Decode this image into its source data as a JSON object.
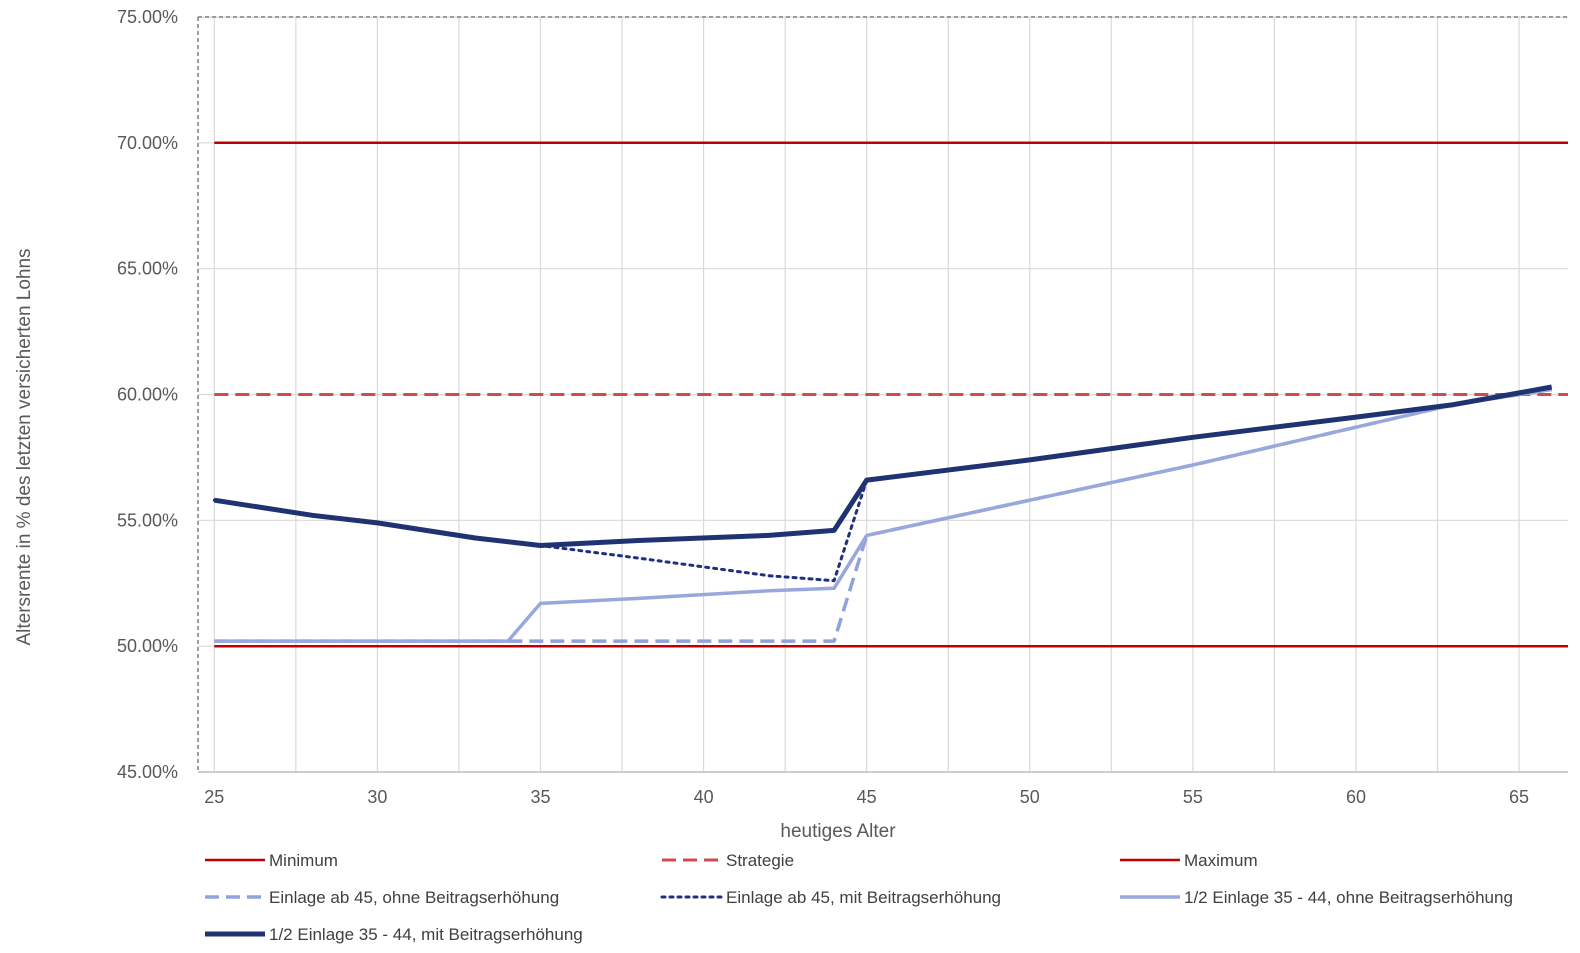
{
  "chart_data": {
    "type": "line",
    "xlabel": "heutiges Alter",
    "ylabel": "Altersrente in % des letzten versicherten Lohns",
    "xlim": [
      24.5,
      66.5
    ],
    "ylim": [
      45,
      75
    ],
    "x_ticks": [
      25,
      30,
      35,
      40,
      45,
      50,
      55,
      60,
      65
    ],
    "y_ticks": [
      "45.00%",
      "50.00%",
      "55.00%",
      "60.00%",
      "65.00%",
      "70.00%",
      "75.00%"
    ],
    "y_tick_values": [
      45,
      50,
      55,
      60,
      65,
      70,
      75
    ],
    "grid": true,
    "legend_position": "bottom",
    "series": [
      {
        "name": "Minimum",
        "color": "#C00000",
        "style": "solid",
        "width": 2.5,
        "x": [
          25,
          66.5
        ],
        "y": [
          50,
          50
        ]
      },
      {
        "name": "Strategie",
        "color": "#D04B4B",
        "style": "dashed",
        "width": 3,
        "x": [
          25,
          66.5
        ],
        "y": [
          60,
          60
        ]
      },
      {
        "name": "Maximum",
        "color": "#C00000",
        "style": "solid",
        "width": 2.5,
        "x": [
          25,
          66.5
        ],
        "y": [
          70,
          70
        ]
      },
      {
        "name": "Einlage ab 45, ohne Beitragserhöhung",
        "color": "#8FA2DA",
        "style": "dashed",
        "width": 3.5,
        "x": [
          25,
          35,
          44,
          45,
          50,
          55,
          60,
          63,
          66
        ],
        "y": [
          50.2,
          50.2,
          50.2,
          54.4,
          55.8,
          57.2,
          58.7,
          59.6,
          60.2
        ]
      },
      {
        "name": "Einlage ab 45, mit Beitragserhöhung",
        "color": "#203080",
        "style": "dotted",
        "width": 3,
        "x": [
          25,
          28,
          30,
          33,
          35,
          38,
          42,
          44,
          45,
          50,
          55,
          60,
          63,
          66
        ],
        "y": [
          55.8,
          55.2,
          54.9,
          54.3,
          54.0,
          53.5,
          52.8,
          52.6,
          56.6,
          57.4,
          58.3,
          59.1,
          59.6,
          60.3
        ]
      },
      {
        "name": "1/2 Einlage 35 - 44, ohne Beitragserhöhung",
        "color": "#98A8DC",
        "style": "solid",
        "width": 3.5,
        "x": [
          25,
          34,
          35,
          38,
          42,
          44,
          45,
          50,
          55,
          60,
          63,
          66
        ],
        "y": [
          50.2,
          50.2,
          51.7,
          51.9,
          52.2,
          52.3,
          54.4,
          55.8,
          57.2,
          58.7,
          59.6,
          60.2
        ]
      },
      {
        "name": "1/2 Einlage 35 - 44, mit Beitragserhöhung",
        "color": "#1F3372",
        "style": "solid",
        "width": 5,
        "x": [
          25,
          28,
          30,
          33,
          35,
          38,
          42,
          44,
          45,
          50,
          55,
          60,
          63,
          66
        ],
        "y": [
          55.8,
          55.2,
          54.9,
          54.3,
          54.0,
          54.2,
          54.4,
          54.6,
          56.6,
          57.4,
          58.3,
          59.1,
          59.6,
          60.3
        ]
      }
    ]
  }
}
